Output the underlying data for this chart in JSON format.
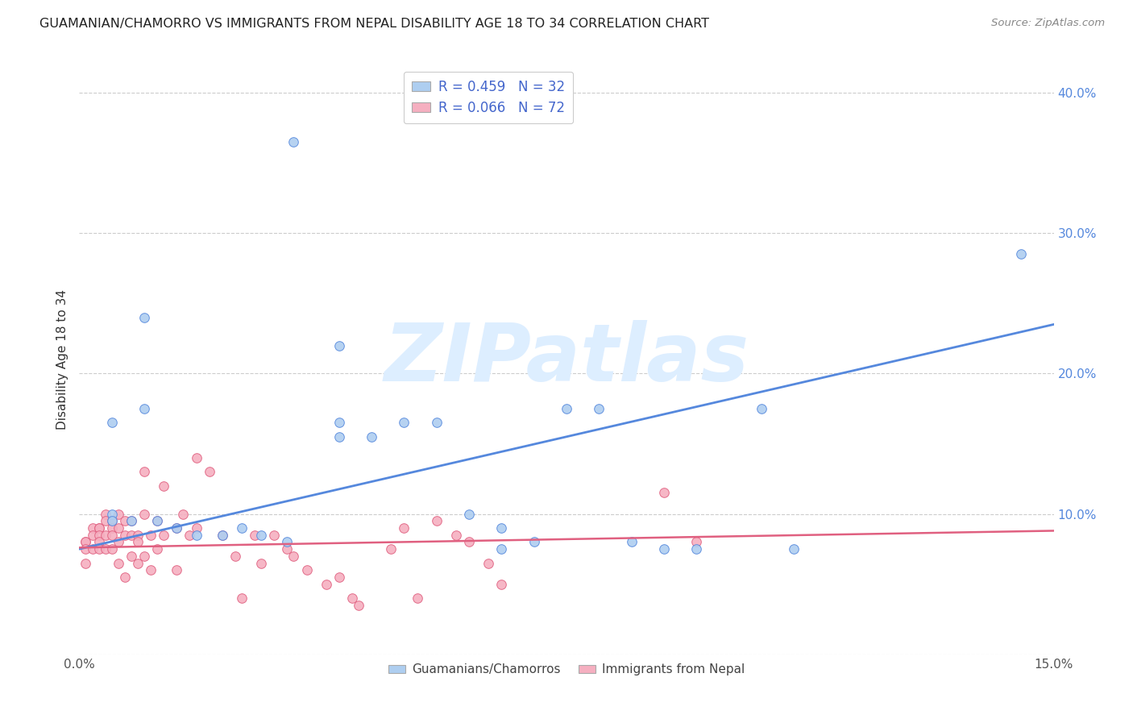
{
  "title": "GUAMANIAN/CHAMORRO VS IMMIGRANTS FROM NEPAL DISABILITY AGE 18 TO 34 CORRELATION CHART",
  "source": "Source: ZipAtlas.com",
  "ylabel": "Disability Age 18 to 34",
  "xlim": [
    0.0,
    0.15
  ],
  "ylim": [
    0.0,
    0.42
  ],
  "ytick_positions": [
    0.0,
    0.1,
    0.2,
    0.3,
    0.4
  ],
  "ytick_labels_right": [
    "",
    "10.0%",
    "20.0%",
    "30.0%",
    "40.0%"
  ],
  "legend_line1": "R = 0.459   N = 32",
  "legend_line2": "R = 0.066   N = 72",
  "blue_color": "#aecef0",
  "pink_color": "#f5afc0",
  "blue_line_color": "#5588dd",
  "pink_line_color": "#e06080",
  "legend_text_color": "#4466cc",
  "title_color": "#222222",
  "grid_color": "#cccccc",
  "watermark": "ZIPatlas",
  "watermark_color": "#ddeeff",
  "blue_scatter_x": [
    0.033,
    0.01,
    0.005,
    0.005,
    0.008,
    0.012,
    0.015,
    0.018,
    0.022,
    0.025,
    0.028,
    0.032,
    0.04,
    0.04,
    0.04,
    0.045,
    0.05,
    0.055,
    0.06,
    0.065,
    0.065,
    0.07,
    0.075,
    0.08,
    0.085,
    0.09,
    0.095,
    0.105,
    0.11,
    0.145,
    0.005,
    0.01
  ],
  "blue_scatter_y": [
    0.365,
    0.24,
    0.165,
    0.1,
    0.095,
    0.095,
    0.09,
    0.085,
    0.085,
    0.09,
    0.085,
    0.08,
    0.22,
    0.165,
    0.155,
    0.155,
    0.165,
    0.165,
    0.1,
    0.09,
    0.075,
    0.08,
    0.175,
    0.175,
    0.08,
    0.075,
    0.075,
    0.175,
    0.075,
    0.285,
    0.095,
    0.175
  ],
  "pink_scatter_x": [
    0.001,
    0.001,
    0.001,
    0.001,
    0.002,
    0.002,
    0.002,
    0.003,
    0.003,
    0.003,
    0.003,
    0.003,
    0.004,
    0.004,
    0.004,
    0.004,
    0.005,
    0.005,
    0.005,
    0.005,
    0.006,
    0.006,
    0.006,
    0.006,
    0.007,
    0.007,
    0.007,
    0.008,
    0.008,
    0.008,
    0.009,
    0.009,
    0.009,
    0.01,
    0.01,
    0.01,
    0.011,
    0.011,
    0.012,
    0.012,
    0.013,
    0.013,
    0.015,
    0.015,
    0.016,
    0.017,
    0.018,
    0.018,
    0.02,
    0.022,
    0.024,
    0.025,
    0.027,
    0.028,
    0.03,
    0.032,
    0.033,
    0.035,
    0.038,
    0.04,
    0.042,
    0.043,
    0.048,
    0.05,
    0.052,
    0.055,
    0.058,
    0.06,
    0.063,
    0.065,
    0.09,
    0.095
  ],
  "pink_scatter_y": [
    0.08,
    0.08,
    0.075,
    0.065,
    0.09,
    0.085,
    0.075,
    0.09,
    0.09,
    0.085,
    0.08,
    0.075,
    0.1,
    0.095,
    0.085,
    0.075,
    0.095,
    0.09,
    0.085,
    0.075,
    0.1,
    0.09,
    0.08,
    0.065,
    0.095,
    0.085,
    0.055,
    0.095,
    0.085,
    0.07,
    0.085,
    0.08,
    0.065,
    0.13,
    0.1,
    0.07,
    0.085,
    0.06,
    0.095,
    0.075,
    0.12,
    0.085,
    0.09,
    0.06,
    0.1,
    0.085,
    0.14,
    0.09,
    0.13,
    0.085,
    0.07,
    0.04,
    0.085,
    0.065,
    0.085,
    0.075,
    0.07,
    0.06,
    0.05,
    0.055,
    0.04,
    0.035,
    0.075,
    0.09,
    0.04,
    0.095,
    0.085,
    0.08,
    0.065,
    0.05,
    0.115,
    0.08
  ],
  "blue_line_x": [
    0.0,
    0.15
  ],
  "blue_line_y": [
    0.075,
    0.235
  ],
  "pink_line_x": [
    0.0,
    0.15
  ],
  "pink_line_y": [
    0.076,
    0.088
  ],
  "legend1_label": "Guamanians/Chamorros",
  "legend2_label": "Immigrants from Nepal",
  "figsize": [
    14.06,
    8.92
  ],
  "dpi": 100
}
